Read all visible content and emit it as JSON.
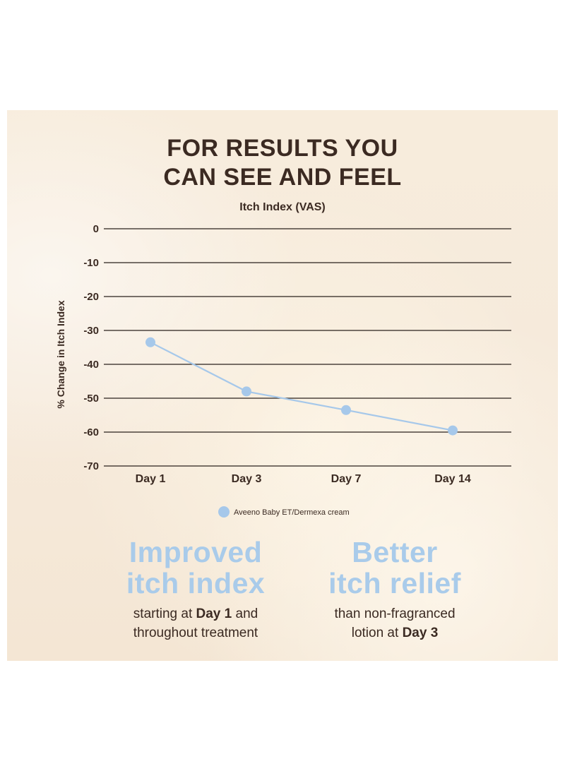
{
  "headline": [
    "FOR RESULTS YOU",
    "CAN SEE AND FEEL"
  ],
  "chart_data": {
    "type": "line",
    "title": "Itch Index (VAS)",
    "ylabel": "% Change in Itch Index",
    "xlabel": "",
    "categories": [
      "Day 1",
      "Day 3",
      "Day 7",
      "Day 14"
    ],
    "yticks": [
      0,
      -10,
      -20,
      -30,
      -40,
      -50,
      -60,
      -70
    ],
    "ylim": [
      -70,
      0
    ],
    "grid": true,
    "legend_position": "bottom-center",
    "series": [
      {
        "name": "Aveeno Baby ET/Dermexa cream",
        "values": [
          -33.5,
          -48,
          -53.5,
          -59.5
        ],
        "color": "#a6c8ea"
      }
    ]
  },
  "claims": [
    {
      "headline": [
        "Improved",
        "itch index"
      ],
      "line1": {
        "pre": "starting at ",
        "bold": "Day 1",
        "post": " and"
      },
      "line2": "throughout treatment"
    },
    {
      "headline": [
        "Better",
        "itch relief"
      ],
      "line1": "than non-fragranced",
      "line2": {
        "pre": "lotion at ",
        "bold": "Day 3"
      }
    }
  ],
  "colors": {
    "text_dark": "#3b2a22",
    "accent_blue": "#a9cbea",
    "panel_bg": "#f6eadb",
    "grid_line": "#2a211c"
  }
}
